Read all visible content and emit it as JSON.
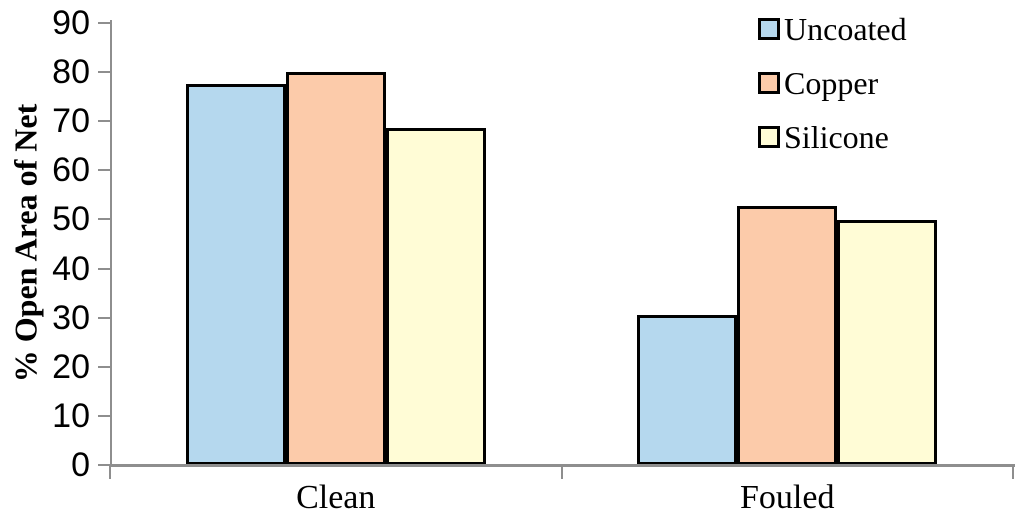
{
  "figure": {
    "background_color": "#ffffff",
    "axis_color": "#8e8e8e",
    "bar_border_color": "#000000",
    "text_color": "#000000"
  },
  "chart_data": {
    "type": "bar",
    "title": "",
    "xlabel": "",
    "ylabel": "% Open Area of Net",
    "categories": [
      "Clean",
      "Fouled"
    ],
    "series": [
      {
        "name": "Uncoated",
        "color": "#b5d8ee",
        "values": [
          77.5,
          30.5
        ]
      },
      {
        "name": "Copper",
        "color": "#fccbaa",
        "values": [
          80.0,
          52.7
        ]
      },
      {
        "name": "Silicone",
        "color": "#fffcd6",
        "values": [
          68.6,
          49.8
        ]
      }
    ],
    "ylim": [
      0,
      90
    ],
    "ytick_step": 10,
    "y_tick_labels": [
      "0",
      "10",
      "20",
      "30",
      "40",
      "50",
      "60",
      "70",
      "80",
      "90"
    ],
    "grid": false,
    "legend_position": "top-right"
  }
}
